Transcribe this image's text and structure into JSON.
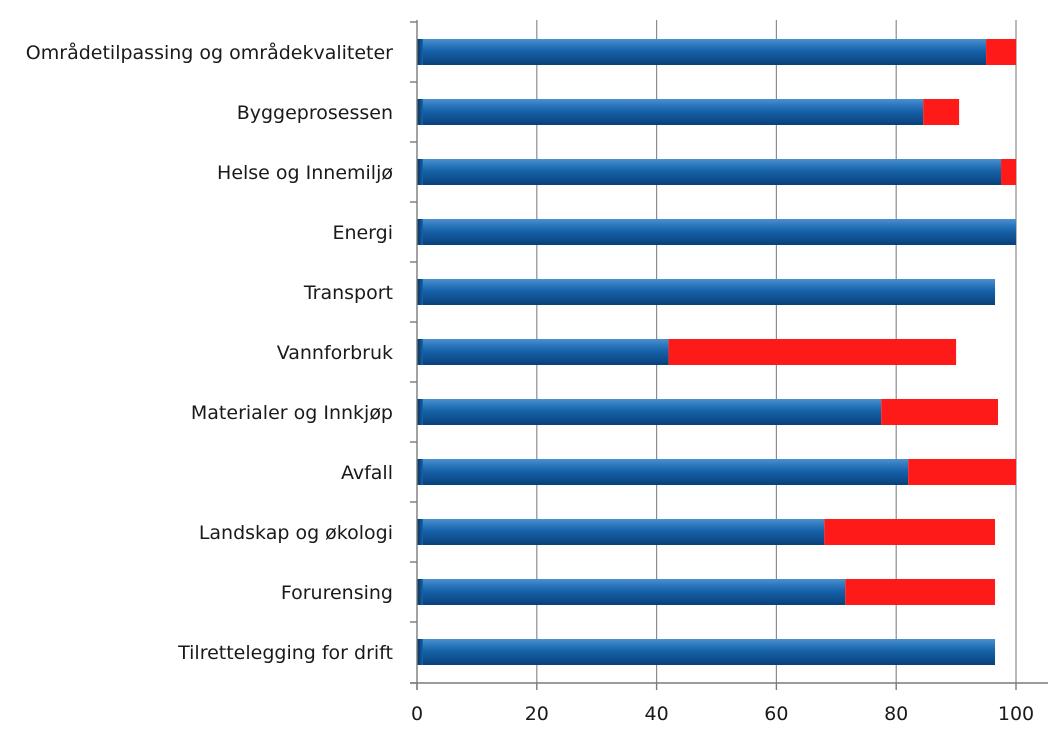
{
  "chart_data": {
    "type": "bar",
    "orientation": "horizontal",
    "stacked": true,
    "categories": [
      "Områdetilpassing og områdekvaliteter",
      "Byggeprosessen",
      "Helse og Innemiljø",
      "Energi",
      "Transport",
      "Vannforbruk",
      "Materialer og Innkjøp",
      "Avfall",
      "Landskap og økologi",
      "Forurensing",
      "Tilrettelegging for drift"
    ],
    "series": [
      {
        "color": "#0f5a9e",
        "values": [
          95,
          84.5,
          97.5,
          100,
          96.5,
          42,
          77.5,
          82,
          68,
          71.5,
          96.5
        ]
      },
      {
        "color": "#ff1a1a",
        "values": [
          5,
          6,
          2.5,
          0,
          0,
          48,
          19.5,
          18,
          28.5,
          25,
          0
        ]
      }
    ],
    "xlim": [
      0,
      100
    ],
    "xticks": [
      0,
      20,
      40,
      60,
      80,
      100
    ],
    "grid": "vertical",
    "legend": "none"
  }
}
